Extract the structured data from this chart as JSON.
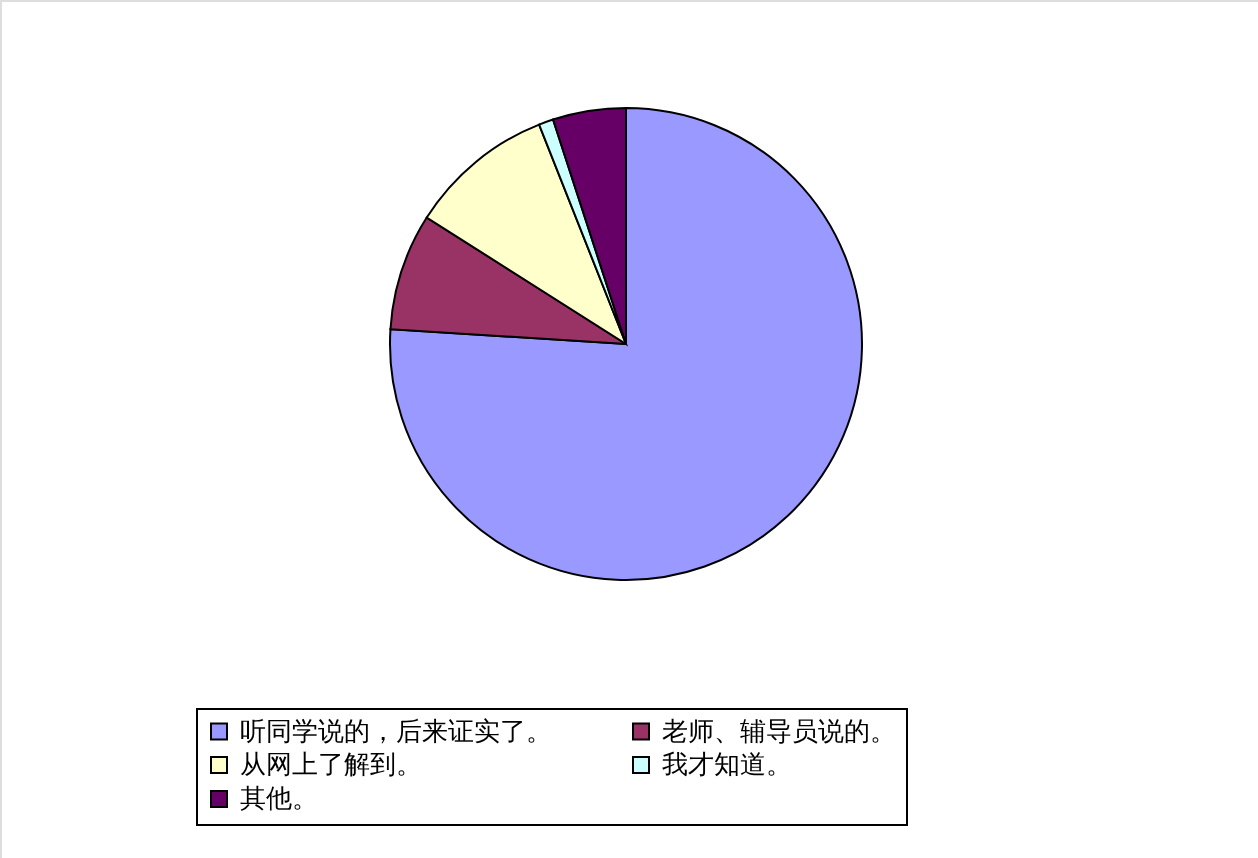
{
  "chart_data": {
    "type": "pie",
    "categories": [
      "听同学说的，后来证实了。",
      "老师、辅导员说的。",
      "从网上了解到。",
      "我才知道。",
      "其他。"
    ],
    "values": [
      76,
      8,
      10,
      1,
      5
    ],
    "colors": [
      "#9999ff",
      "#993366",
      "#ffffcc",
      "#ccffff",
      "#660066"
    ],
    "legend": "bottom"
  }
}
